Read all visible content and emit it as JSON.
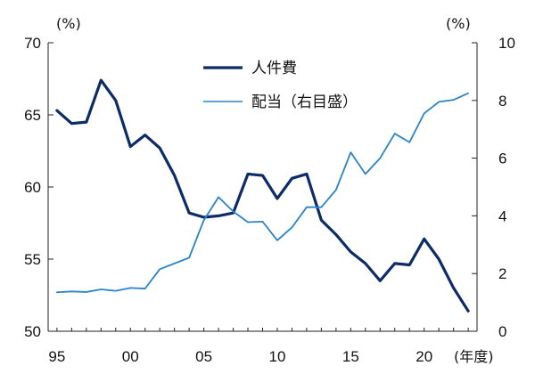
{
  "chart_data": {
    "type": "line",
    "x": [
      1995,
      1996,
      1997,
      1998,
      1999,
      2000,
      2001,
      2002,
      2003,
      2004,
      2005,
      2006,
      2007,
      2008,
      2009,
      2010,
      2011,
      2012,
      2013,
      2014,
      2015,
      2016,
      2017,
      2018,
      2019,
      2020,
      2021,
      2022,
      2023
    ],
    "x_ticks": [
      {
        "value": 1995,
        "label": "95"
      },
      {
        "value": 2000,
        "label": "00"
      },
      {
        "value": 2005,
        "label": "05"
      },
      {
        "value": 2010,
        "label": "10"
      },
      {
        "value": 2015,
        "label": "15"
      },
      {
        "value": 2020,
        "label": "20"
      }
    ],
    "xlim": [
      1994.4,
      2023.6
    ],
    "xlabel": "(年度)",
    "y_left": {
      "unit": "(%)",
      "lim": [
        50,
        70
      ],
      "ticks": [
        50,
        55,
        60,
        65,
        70
      ]
    },
    "y_right": {
      "unit": "(%)",
      "lim": [
        0,
        10
      ],
      "ticks": [
        0,
        2,
        4,
        6,
        8,
        10
      ]
    },
    "series": [
      {
        "name": "人件費",
        "axis": "left",
        "color": "#0d2b66",
        "values": [
          65.3,
          64.4,
          64.5,
          67.4,
          66.0,
          62.8,
          63.6,
          62.7,
          60.8,
          58.2,
          57.9,
          58.0,
          58.2,
          60.9,
          60.8,
          59.2,
          60.6,
          60.9,
          57.7,
          56.7,
          55.5,
          54.7,
          53.5,
          54.7,
          54.6,
          56.4,
          55.0,
          53.0,
          51.4
        ]
      },
      {
        "name": "配当(右目盛)",
        "axis": "right",
        "color": "#2a83c9",
        "values": [
          1.35,
          1.38,
          1.36,
          1.45,
          1.4,
          1.5,
          1.48,
          2.15,
          2.35,
          2.55,
          3.85,
          4.65,
          4.15,
          3.78,
          3.8,
          3.15,
          3.6,
          4.3,
          4.3,
          4.9,
          6.2,
          5.45,
          6.0,
          6.85,
          6.55,
          7.55,
          7.95,
          8.02,
          8.25
        ]
      }
    ],
    "legend": {
      "placement": "top-center",
      "entries": [
        "人件費",
        "配当（右目盛）"
      ]
    }
  }
}
